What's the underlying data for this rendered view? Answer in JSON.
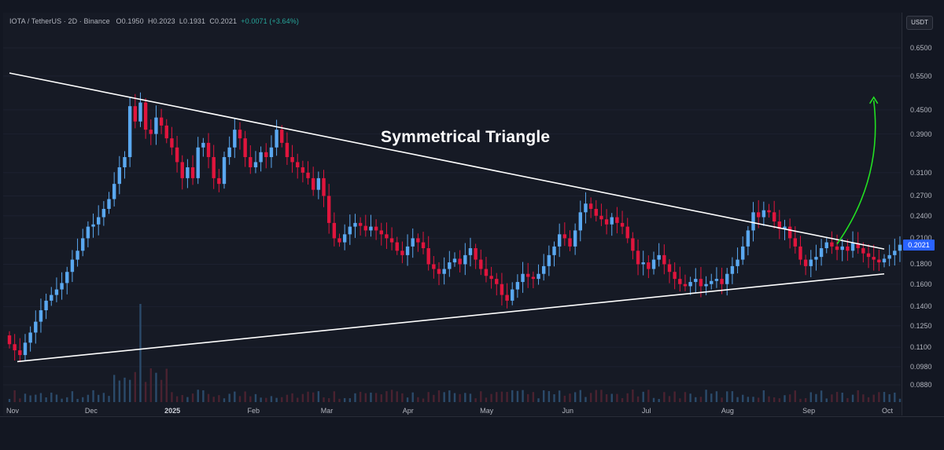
{
  "info": {
    "symbol": "IOTA / TetherUS · 2D · Binance",
    "open": "O0.1950",
    "high": "H0.2023",
    "low": "L0.1931",
    "close": "C0.2021",
    "change": "+0.0071 (+3.64%)"
  },
  "currency": "USDT",
  "annotation": "Symmetrical Triangle",
  "current_price_label": "0.2021",
  "colors": {
    "background": "#131722",
    "up": "#5aa8f0",
    "down": "#e0153d",
    "trendline": "#ffffff",
    "arrow": "#22e022",
    "current_price": "#2962ff"
  },
  "chart_data": {
    "type": "candlestick",
    "title": "",
    "y_scale": "log",
    "y_ticks": [
      "0.6500",
      "0.5500",
      "0.4500",
      "0.3900",
      "0.3100",
      "0.2700",
      "0.2400",
      "0.2100",
      "0.1800",
      "0.1600",
      "0.1400",
      "0.1250",
      "0.1100",
      "0.0980",
      "0.0880"
    ],
    "x_ticks": [
      "Nov",
      "Dec",
      "2025",
      "Feb",
      "Mar",
      "Apr",
      "May",
      "Jun",
      "Jul",
      "Aug",
      "Sep",
      "Oct"
    ],
    "bold_x_ticks": [
      "2025"
    ],
    "candle_interval": "2D",
    "first_candle_date": "2024-11-01",
    "series": [
      {
        "name": "",
        "closes": [
          0.112,
          0.108,
          0.105,
          0.113,
          0.12,
          0.128,
          0.137,
          0.145,
          0.15,
          0.155,
          0.161,
          0.172,
          0.185,
          0.195,
          0.21,
          0.225,
          0.228,
          0.238,
          0.25,
          0.265,
          0.29,
          0.32,
          0.34,
          0.46,
          0.42,
          0.47,
          0.4,
          0.39,
          0.43,
          0.41,
          0.38,
          0.36,
          0.33,
          0.3,
          0.32,
          0.3,
          0.36,
          0.37,
          0.34,
          0.3,
          0.29,
          0.34,
          0.36,
          0.4,
          0.38,
          0.34,
          0.32,
          0.33,
          0.35,
          0.34,
          0.36,
          0.4,
          0.37,
          0.34,
          0.33,
          0.32,
          0.31,
          0.3,
          0.28,
          0.3,
          0.27,
          0.23,
          0.21,
          0.205,
          0.215,
          0.225,
          0.23,
          0.226,
          0.22,
          0.225,
          0.22,
          0.215,
          0.21,
          0.205,
          0.195,
          0.19,
          0.2,
          0.21,
          0.205,
          0.198,
          0.18,
          0.175,
          0.17,
          0.175,
          0.182,
          0.186,
          0.18,
          0.19,
          0.198,
          0.185,
          0.175,
          0.168,
          0.165,
          0.16,
          0.15,
          0.145,
          0.155,
          0.162,
          0.17,
          0.167,
          0.165,
          0.17,
          0.178,
          0.19,
          0.2,
          0.215,
          0.21,
          0.2,
          0.22,
          0.245,
          0.258,
          0.25,
          0.24,
          0.235,
          0.228,
          0.238,
          0.23,
          0.225,
          0.21,
          0.195,
          0.18,
          0.182,
          0.175,
          0.185,
          0.19,
          0.18,
          0.172,
          0.165,
          0.16,
          0.158,
          0.162,
          0.165,
          0.158,
          0.16,
          0.163,
          0.165,
          0.16,
          0.17,
          0.178,
          0.185,
          0.2,
          0.22,
          0.245,
          0.238,
          0.248,
          0.245,
          0.232,
          0.222,
          0.225,
          0.21,
          0.2,
          0.185,
          0.178,
          0.185,
          0.188,
          0.198,
          0.205,
          0.2,
          0.196,
          0.2,
          0.195,
          0.204,
          0.198,
          0.192,
          0.188,
          0.185,
          0.182,
          0.186,
          0.19,
          0.195,
          0.2021
        ]
      }
    ],
    "trendlines": [
      {
        "name": "upper",
        "from": {
          "date": "2024-11-01",
          "price": 0.56
        },
        "to": {
          "date": "2025-10-01",
          "price": 0.197
        }
      },
      {
        "name": "lower",
        "from": {
          "date": "2024-11-04",
          "price": 0.101
        },
        "to": {
          "date": "2025-10-01",
          "price": 0.17
        }
      }
    ],
    "arrow": {
      "from": {
        "date": "2025-09-13",
        "price": 0.203
      },
      "to": {
        "date": "2025-09-27",
        "price": 0.485
      }
    }
  }
}
